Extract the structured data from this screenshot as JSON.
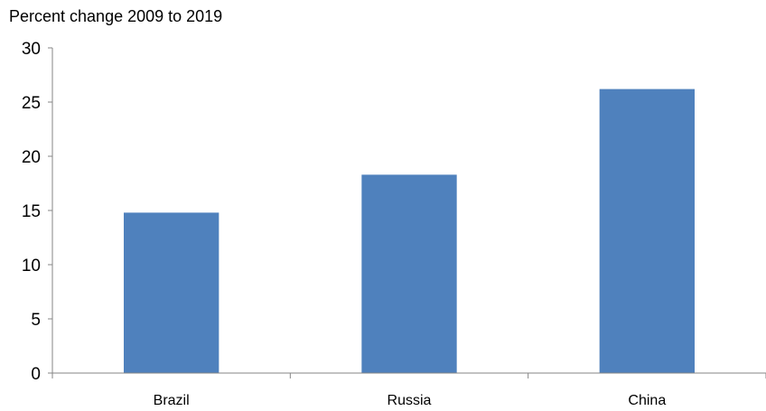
{
  "chart_data": {
    "type": "bar",
    "title": "Percent change 2009 to 2019",
    "xlabel": "",
    "ylabel": "",
    "categories": [
      "Brazil",
      "Russia",
      "China"
    ],
    "values": [
      14.8,
      18.3,
      26.2
    ],
    "ylim": [
      0,
      30
    ],
    "yticks": [
      0,
      5,
      10,
      15,
      20,
      25,
      30
    ],
    "grid": false,
    "legend": "none",
    "bar_color": "#4f81bd",
    "axis_color": "#868686"
  }
}
